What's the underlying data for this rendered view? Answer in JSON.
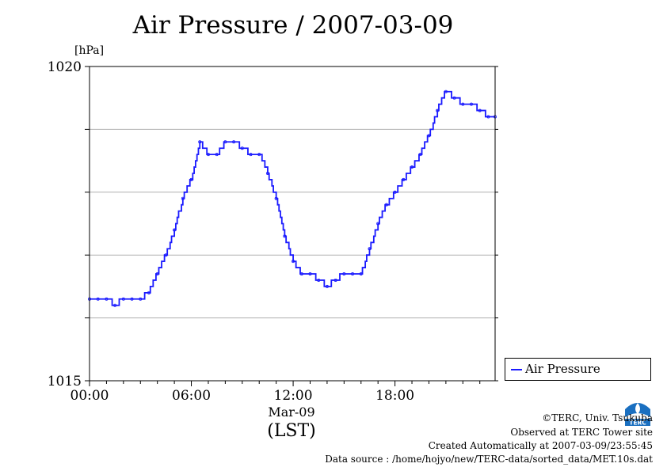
{
  "chart_data": {
    "type": "line",
    "title": "Air Pressure / 2007-03-09",
    "ylabel": "[hPa]",
    "xlabel": "Mar-09",
    "xlabel_sub": "(LST)",
    "ylim": [
      1015,
      1020
    ],
    "xlim_hours": [
      0,
      23.9
    ],
    "yticks": [
      "1015",
      "1020"
    ],
    "xticks": [
      {
        "hour": 0,
        "label": "00:00"
      },
      {
        "hour": 6,
        "label": "06:00"
      },
      {
        "hour": 12,
        "label": "12:00"
      },
      {
        "hour": 18,
        "label": "18:00"
      }
    ],
    "grid": true,
    "legend_position": "bottom-right outside",
    "series": [
      {
        "name": "Air Pressure",
        "color": "#1a1aff",
        "x": [
          0,
          0.5,
          1,
          1.5,
          2,
          2.5,
          3,
          3.5,
          4,
          4.5,
          5,
          5.5,
          6,
          6.5,
          7,
          7.5,
          8,
          8.5,
          9,
          9.5,
          10,
          10.5,
          11,
          11.5,
          12,
          12.5,
          13,
          13.5,
          14,
          14.5,
          15,
          15.5,
          16,
          16.5,
          17,
          17.5,
          18,
          18.5,
          19,
          19.5,
          20,
          20.5,
          21,
          21.5,
          22,
          22.5,
          23,
          23.5,
          23.9
        ],
        "y": [
          1016.3,
          1016.3,
          1016.3,
          1016.2,
          1016.3,
          1016.3,
          1016.3,
          1016.4,
          1016.7,
          1017.0,
          1017.4,
          1017.9,
          1018.2,
          1018.8,
          1018.6,
          1018.6,
          1018.8,
          1018.8,
          1018.7,
          1018.6,
          1018.6,
          1018.3,
          1017.9,
          1017.3,
          1016.9,
          1016.7,
          1016.7,
          1016.6,
          1016.5,
          1016.6,
          1016.7,
          1016.7,
          1016.7,
          1017.1,
          1017.5,
          1017.8,
          1018.0,
          1018.2,
          1018.4,
          1018.6,
          1018.9,
          1019.3,
          1019.6,
          1019.5,
          1019.4,
          1019.4,
          1019.3,
          1019.2,
          1019.2
        ]
      }
    ]
  },
  "credits": {
    "copyright": "©TERC, Univ. Tsukuba",
    "observed": "Observed at TERC Tower site",
    "created": "Created Automatically at 2007-03-09/23:55:45",
    "source": "Data source : /home/hojyo/new/TERC-data/sorted_data/MET.10s.dat"
  },
  "logo": {
    "text": "TERC",
    "color": "#1a6fc0"
  }
}
